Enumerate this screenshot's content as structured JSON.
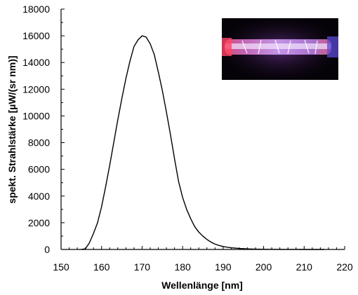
{
  "chart_data": {
    "type": "line",
    "xlabel": "Wellenlänge [nm]",
    "ylabel": "spekt. Strahlstärke [µW/(sr nm)]",
    "xlim": [
      150,
      220
    ],
    "ylim": [
      0,
      18000
    ],
    "x_ticks": [
      "150",
      "160",
      "170",
      "180",
      "190",
      "200",
      "210",
      "220"
    ],
    "y_ticks": [
      "0",
      "2000",
      "4000",
      "6000",
      "8000",
      "10000",
      "12000",
      "14000",
      "16000",
      "18000"
    ],
    "grid": false,
    "line_color": "#000000",
    "inset_image": "photo of a glowing purple-pink discharge lamp tube on black background",
    "series": [
      {
        "x": [
          155,
          156,
          157,
          158,
          159,
          160,
          161,
          162,
          163,
          164,
          165,
          166,
          167,
          168,
          169,
          170,
          171,
          172,
          173,
          174,
          175,
          176,
          177,
          178,
          179,
          180,
          181,
          182,
          183,
          184,
          185,
          186,
          187,
          188,
          189,
          190,
          191,
          192,
          193,
          194,
          195,
          196,
          198,
          200,
          202,
          204,
          206,
          208,
          210,
          215
        ],
        "y": [
          0,
          50,
          500,
          1200,
          2000,
          3200,
          4700,
          6300,
          8000,
          9700,
          11300,
          12800,
          14100,
          15200,
          15700,
          16000,
          15900,
          15400,
          14600,
          13300,
          11900,
          10300,
          8600,
          6800,
          5100,
          3900,
          3000,
          2300,
          1700,
          1300,
          1000,
          750,
          550,
          400,
          300,
          220,
          170,
          130,
          100,
          75,
          60,
          45,
          25,
          15,
          8,
          4,
          2,
          1,
          0,
          0
        ]
      }
    ]
  }
}
